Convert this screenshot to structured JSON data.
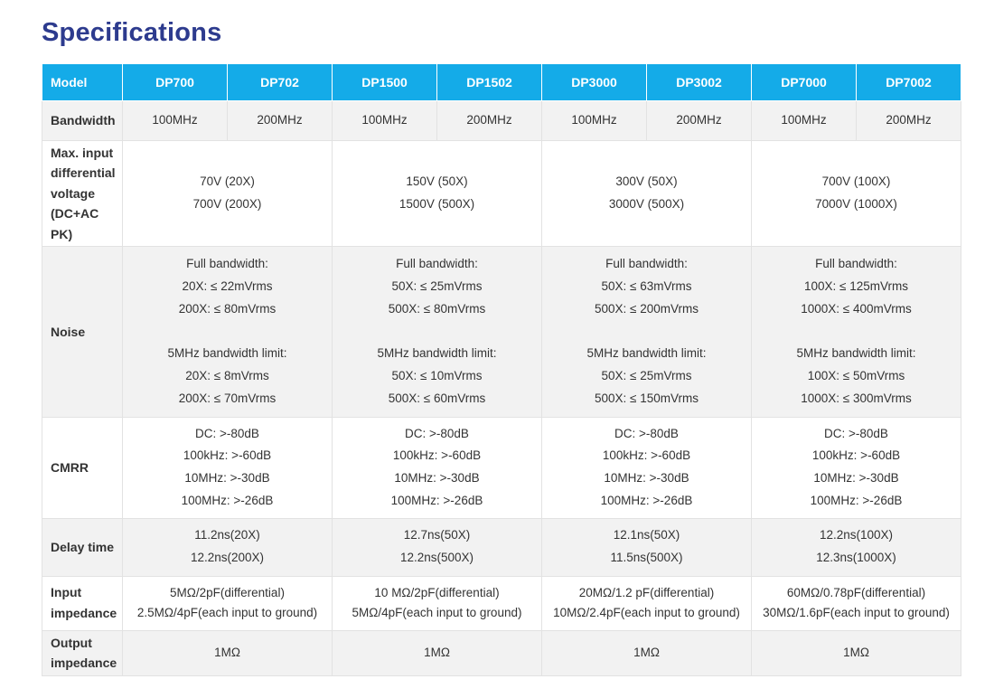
{
  "page": {
    "title": "Specifications"
  },
  "colors": {
    "header_bg": "#14abe8",
    "header_text": "#ffffff",
    "title_text": "#2d3b8e",
    "body_text": "#333333",
    "shaded_row_bg": "#f2f2f2",
    "border": "#e2e2e2"
  },
  "table": {
    "header": [
      "Model",
      "DP700",
      "DP702",
      "DP1500",
      "DP1502",
      "DP3000",
      "DP3002",
      "DP7000",
      "DP7002"
    ],
    "rows": [
      {
        "label": "Bandwidth",
        "cells": [
          "100MHz",
          "200MHz",
          "100MHz",
          "200MHz",
          "100MHz",
          "200MHz",
          "100MHz",
          "200MHz"
        ]
      },
      {
        "label": "Max. input\ndifferential\nvoltage\n(DC+AC PK)",
        "cells": [
          "70V (20X)\n700V (200X)",
          "150V (50X)\n1500V (500X)",
          "300V (50X)\n3000V (500X)",
          "700V (100X)\n7000V (1000X)"
        ]
      },
      {
        "label": "Noise",
        "cells": [
          "Full bandwidth:\n20X: ≤ 22mVrms\n200X: ≤ 80mVrms\n\n5MHz bandwidth limit:\n20X: ≤ 8mVrms\n200X: ≤ 70mVrms",
          "Full bandwidth:\n50X: ≤ 25mVrms\n500X: ≤ 80mVrms\n\n5MHz bandwidth limit:\n50X: ≤ 10mVrms\n500X: ≤ 60mVrms",
          "Full bandwidth:\n50X: ≤ 63mVrms\n500X: ≤ 200mVrms\n\n5MHz bandwidth limit:\n50X: ≤ 25mVrms\n500X: ≤ 150mVrms",
          "Full bandwidth:\n100X: ≤ 125mVrms\n1000X: ≤ 400mVrms\n\n5MHz bandwidth limit:\n100X: ≤ 50mVrms\n1000X: ≤ 300mVrms"
        ]
      },
      {
        "label": "CMRR",
        "cells": [
          "DC: >-80dB\n100kHz: >-60dB\n10MHz: >-30dB\n100MHz: >-26dB",
          "DC: >-80dB\n100kHz: >-60dB\n10MHz: >-30dB\n100MHz: >-26dB",
          "DC: >-80dB\n100kHz: >-60dB\n10MHz: >-30dB\n100MHz: >-26dB",
          "DC: >-80dB\n100kHz: >-60dB\n10MHz: >-30dB\n100MHz: >-26dB"
        ]
      },
      {
        "label": "Delay time",
        "cells": [
          "11.2ns(20X)\n12.2ns(200X)",
          "12.7ns(50X)\n12.2ns(500X)",
          "12.1ns(50X)\n11.5ns(500X)",
          "12.2ns(100X)\n12.3ns(1000X)"
        ]
      },
      {
        "label": "Input\nimpedance",
        "cells": [
          "5MΩ/2pF(differential)\n2.5MΩ/4pF(each input to ground)",
          "10 MΩ/2pF(differential)\n5MΩ/4pF(each input to ground)",
          "20MΩ/1.2 pF(differential)\n10MΩ/2.4pF(each input to ground)",
          "60MΩ/0.78pF(differential)\n30MΩ/1.6pF(each input to ground)"
        ]
      },
      {
        "label": "Output\nimpedance",
        "cells": [
          "1MΩ",
          "1MΩ",
          "1MΩ",
          "1MΩ"
        ]
      }
    ]
  }
}
